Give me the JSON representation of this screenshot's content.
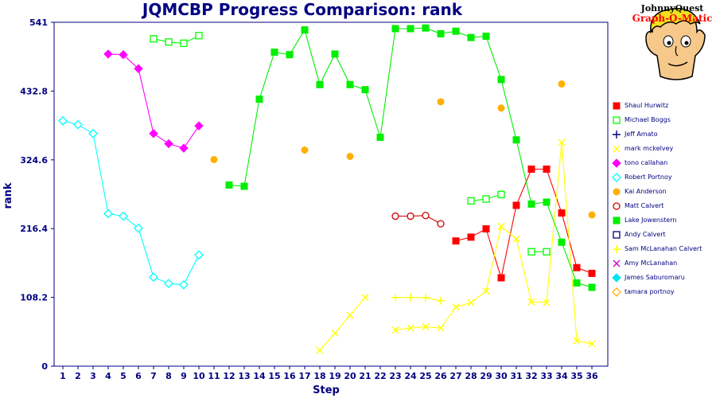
{
  "page": {
    "title": "JQMCBP Progress Comparison: rank",
    "logo": {
      "line1": "JohnnyQuest",
      "line2": "Graph-O-Matic"
    }
  },
  "chart_data": {
    "type": "line",
    "title": "JQMCBP Progress Comparison: rank",
    "xlabel": "Step",
    "ylabel": "rank",
    "x": [
      1,
      2,
      3,
      4,
      5,
      6,
      7,
      8,
      9,
      10,
      11,
      12,
      13,
      14,
      15,
      16,
      17,
      18,
      19,
      20,
      21,
      22,
      23,
      24,
      25,
      26,
      27,
      28,
      29,
      30,
      31,
      32,
      33,
      34,
      35,
      36
    ],
    "ylim": [
      0,
      541
    ],
    "yticks": [
      0,
      108.2,
      216.4,
      324.6,
      432.8,
      541
    ],
    "ytick_labels": [
      "0",
      "108.2",
      "216.4",
      "324.6",
      "432.8",
      "541"
    ],
    "grid": false,
    "legend_position": "right",
    "series": [
      {
        "name": "Shaul Hurwitz",
        "color": "#ff0000",
        "marker": "square-filled",
        "values": [
          null,
          null,
          null,
          null,
          null,
          null,
          null,
          null,
          null,
          null,
          null,
          null,
          null,
          null,
          null,
          null,
          null,
          null,
          null,
          null,
          null,
          null,
          null,
          null,
          null,
          null,
          197,
          203,
          216,
          139,
          253,
          310,
          310,
          241,
          155,
          146
        ]
      },
      {
        "name": "Michael Boggs",
        "color": "#00ff00",
        "marker": "square-open",
        "values": [
          null,
          null,
          null,
          null,
          null,
          null,
          515,
          510,
          508,
          520,
          null,
          null,
          null,
          null,
          null,
          null,
          null,
          null,
          null,
          null,
          null,
          null,
          null,
          null,
          null,
          null,
          null,
          260,
          263,
          270,
          null,
          180,
          180,
          null,
          null,
          null
        ]
      },
      {
        "name": "Jeff Amato",
        "color": "#000080",
        "marker": "plus",
        "values": [
          null,
          null,
          null,
          null,
          null,
          null,
          null,
          null,
          null,
          null,
          null,
          null,
          null,
          null,
          null,
          null,
          null,
          null,
          null,
          null,
          null,
          null,
          null,
          null,
          null,
          null,
          null,
          null,
          null,
          null,
          null,
          null,
          null,
          null,
          null,
          null
        ]
      },
      {
        "name": "mark mckelvey",
        "color": "#ffff00",
        "marker": "x",
        "values": [
          null,
          null,
          null,
          null,
          null,
          null,
          null,
          null,
          null,
          null,
          null,
          null,
          null,
          null,
          null,
          null,
          null,
          25,
          52,
          80,
          108,
          null,
          57,
          60,
          62,
          60,
          93,
          100,
          118,
          220,
          200,
          101,
          100,
          352,
          40,
          35
        ]
      },
      {
        "name": "tono callahan",
        "color": "#ff00ff",
        "marker": "diamond",
        "values": [
          null,
          null,
          null,
          491,
          490,
          468,
          366,
          350,
          343,
          378,
          null,
          null,
          null,
          null,
          null,
          null,
          null,
          null,
          null,
          null,
          null,
          null,
          null,
          null,
          null,
          null,
          null,
          null,
          null,
          null,
          null,
          null,
          null,
          null,
          null,
          null
        ]
      },
      {
        "name": "Robert Portnoy",
        "color": "#00ffff",
        "marker": "diamond-open",
        "values": [
          386,
          380,
          366,
          240,
          236,
          217,
          140,
          130,
          128,
          175,
          null,
          null,
          null,
          null,
          null,
          null,
          null,
          null,
          null,
          null,
          null,
          null,
          null,
          null,
          null,
          null,
          null,
          null,
          null,
          null,
          null,
          null,
          null,
          null,
          null,
          null
        ]
      },
      {
        "name": "Kai Anderson",
        "color": "#ffb000",
        "marker": "circle-filled",
        "values": [
          null,
          null,
          null,
          null,
          null,
          null,
          null,
          null,
          null,
          null,
          325,
          null,
          null,
          null,
          null,
          null,
          340,
          null,
          null,
          330,
          null,
          null,
          null,
          null,
          null,
          416,
          null,
          null,
          null,
          406,
          null,
          null,
          null,
          444,
          null,
          238
        ]
      },
      {
        "name": "Matt Calvert",
        "color": "#cc0000",
        "marker": "circle-open",
        "values": [
          null,
          null,
          null,
          null,
          null,
          null,
          null,
          null,
          null,
          null,
          null,
          null,
          null,
          null,
          null,
          null,
          null,
          null,
          null,
          null,
          null,
          null,
          236,
          236,
          237,
          224,
          null,
          null,
          null,
          null,
          null,
          null,
          null,
          null,
          null,
          null
        ]
      },
      {
        "name": "Lake Jowenstern",
        "color": "#00ee00",
        "marker": "square-filled",
        "values": [
          null,
          null,
          null,
          null,
          null,
          null,
          null,
          null,
          null,
          null,
          null,
          285,
          283,
          420,
          494,
          490,
          529,
          443,
          491,
          443,
          435,
          360,
          531,
          531,
          532,
          523,
          527,
          517,
          519,
          451,
          356,
          255,
          258,
          195,
          131,
          124
        ]
      },
      {
        "name": "Andy Calvert",
        "color": "#000080",
        "marker": "square-open",
        "values": [
          null,
          null,
          null,
          null,
          null,
          null,
          null,
          null,
          null,
          null,
          null,
          null,
          null,
          null,
          null,
          null,
          null,
          null,
          null,
          null,
          null,
          null,
          null,
          null,
          null,
          null,
          null,
          null,
          null,
          null,
          null,
          null,
          null,
          null,
          null,
          null
        ]
      },
      {
        "name": "Sam McLanahan Calvert",
        "color": "#ffff00",
        "marker": "plus",
        "values": [
          null,
          null,
          null,
          null,
          null,
          null,
          null,
          null,
          null,
          null,
          null,
          null,
          null,
          null,
          null,
          null,
          null,
          null,
          null,
          null,
          null,
          null,
          108,
          108,
          108,
          103,
          null,
          null,
          null,
          null,
          null,
          null,
          null,
          null,
          null,
          null
        ]
      },
      {
        "name": "Amy McLanahan",
        "color": "#cc00cc",
        "marker": "x",
        "values": [
          null,
          null,
          null,
          null,
          null,
          null,
          null,
          null,
          null,
          null,
          null,
          null,
          null,
          null,
          null,
          null,
          null,
          null,
          null,
          null,
          null,
          null,
          null,
          null,
          null,
          null,
          null,
          null,
          null,
          null,
          null,
          null,
          null,
          null,
          null,
          null
        ]
      },
      {
        "name": "James Saburomaru",
        "color": "#00e5ee",
        "marker": "diamond",
        "values": [
          null,
          null,
          null,
          null,
          null,
          null,
          null,
          null,
          null,
          null,
          null,
          null,
          null,
          null,
          null,
          null,
          null,
          null,
          null,
          null,
          null,
          null,
          null,
          null,
          null,
          null,
          null,
          null,
          null,
          null,
          null,
          null,
          null,
          null,
          null,
          null
        ]
      },
      {
        "name": "tamara portnoy",
        "color": "#ffb000",
        "marker": "diamond-open",
        "values": [
          null,
          null,
          null,
          null,
          null,
          null,
          null,
          null,
          null,
          null,
          null,
          null,
          null,
          null,
          null,
          null,
          null,
          null,
          null,
          null,
          null,
          null,
          null,
          null,
          null,
          null,
          null,
          null,
          null,
          null,
          null,
          null,
          null,
          null,
          null,
          null
        ]
      }
    ]
  }
}
